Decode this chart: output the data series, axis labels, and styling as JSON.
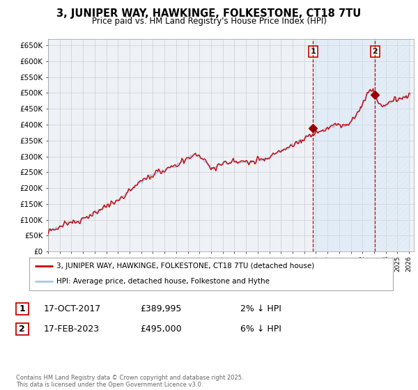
{
  "title": "3, JUNIPER WAY, HAWKINGE, FOLKESTONE, CT18 7TU",
  "subtitle": "Price paid vs. HM Land Registry's House Price Index (HPI)",
  "ylabel_ticks": [
    "£0",
    "£50K",
    "£100K",
    "£150K",
    "£200K",
    "£250K",
    "£300K",
    "£350K",
    "£400K",
    "£450K",
    "£500K",
    "£550K",
    "£600K",
    "£650K"
  ],
  "ytick_vals": [
    0,
    50000,
    100000,
    150000,
    200000,
    250000,
    300000,
    350000,
    400000,
    450000,
    500000,
    550000,
    600000,
    650000
  ],
  "ylim": [
    0,
    670000
  ],
  "sale1_date_label": "17-OCT-2017",
  "sale1_price": 389995,
  "sale1_hpi_diff": "2% ↓ HPI",
  "sale2_date_label": "17-FEB-2023",
  "sale2_price": 495000,
  "sale2_hpi_diff": "6% ↓ HPI",
  "legend_line1": "3, JUNIPER WAY, HAWKINGE, FOLKESTONE, CT18 7TU (detached house)",
  "legend_line2": "HPI: Average price, detached house, Folkestone and Hythe",
  "footer": "Contains HM Land Registry data © Crown copyright and database right 2025.\nThis data is licensed under the Open Government Licence v3.0.",
  "hpi_line_color": "#a8c8e8",
  "price_line_color": "#cc0000",
  "grid_color": "#cccccc",
  "bg_color": "#ffffff",
  "plot_bg_color": "#eef2f7",
  "vline_color": "#cc0000",
  "marker_color": "#990000",
  "shade_color": "#d0e4f5",
  "hatch_color": "#e0e8f0"
}
